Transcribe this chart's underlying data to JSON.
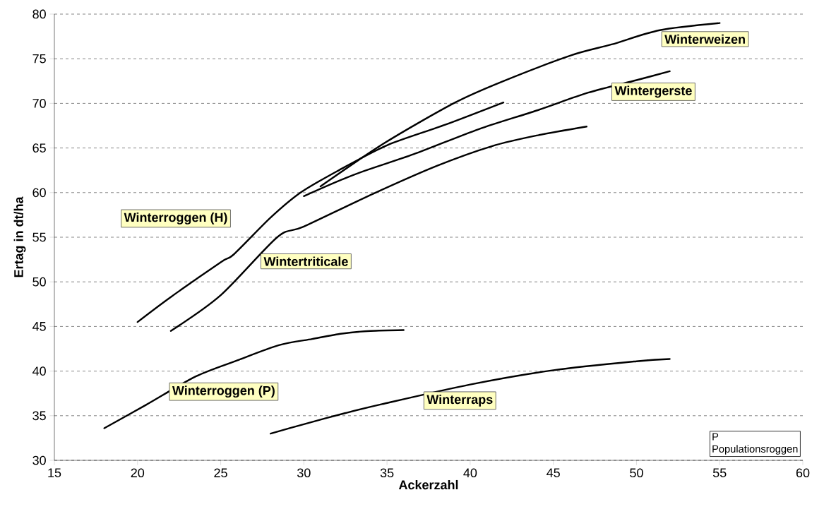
{
  "chart_data": {
    "type": "line",
    "xlabel": "Ackerzahl",
    "ylabel": "Ertag in dt/ha",
    "xlim": [
      15,
      60
    ],
    "ylim": [
      30,
      80
    ],
    "xticks": [
      15,
      20,
      25,
      30,
      35,
      40,
      45,
      50,
      55,
      60
    ],
    "yticks": [
      30,
      35,
      40,
      45,
      50,
      55,
      60,
      65,
      70,
      75,
      80
    ],
    "grid": "y",
    "legend": false,
    "marker": "none",
    "line_style": "solid",
    "series": [
      {
        "name": "Winterweizen",
        "color": "#000000",
        "x": [
          31,
          34.8,
          39.1,
          42,
          46.1,
          48.5,
          51.4,
          55
        ],
        "values": [
          60.7,
          65.5,
          70.1,
          72.5,
          75.4,
          76.6,
          78.2,
          79
        ]
      },
      {
        "name": "Wintergerste",
        "color": "#000000",
        "x": [
          30,
          33,
          36.6,
          40.5,
          44,
          47.1,
          50,
          52
        ],
        "values": [
          59.6,
          62,
          64.3,
          67.1,
          69.2,
          71.2,
          72.6,
          73.6
        ]
      },
      {
        "name": "Winterroggen (H)",
        "color": "#000000",
        "x": [
          20,
          22,
          25,
          25.8,
          28,
          29.8,
          32,
          35,
          38.5,
          42
        ],
        "values": [
          45.5,
          48.3,
          52.2,
          53.1,
          57.2,
          60,
          62.4,
          65.3,
          67.6,
          70.1
        ]
      },
      {
        "name": "Wintertriticale",
        "color": "#000000",
        "x": [
          22,
          25,
          28.4,
          30,
          34.2,
          38,
          41.3,
          44,
          47
        ],
        "values": [
          44.5,
          48.5,
          55,
          56.2,
          59.9,
          63,
          65.2,
          66.4,
          67.4
        ]
      },
      {
        "name": "Winterroggen (P)",
        "color": "#000000",
        "x": [
          18,
          20.5,
          23.5,
          26,
          28.5,
          30.5,
          32.3,
          34,
          36
        ],
        "values": [
          33.6,
          36.2,
          39.4,
          41.2,
          42.9,
          43.6,
          44.2,
          44.5,
          44.6
        ]
      },
      {
        "name": "Winterraps",
        "color": "#000000",
        "x": [
          28,
          30,
          32.5,
          34.7,
          40,
          45,
          50,
          52
        ],
        "values": [
          33,
          34.05,
          35.3,
          36.3,
          38.5,
          40.1,
          41.1,
          41.35
        ]
      }
    ],
    "annotations": [
      "P Populationsroggen"
    ]
  }
}
